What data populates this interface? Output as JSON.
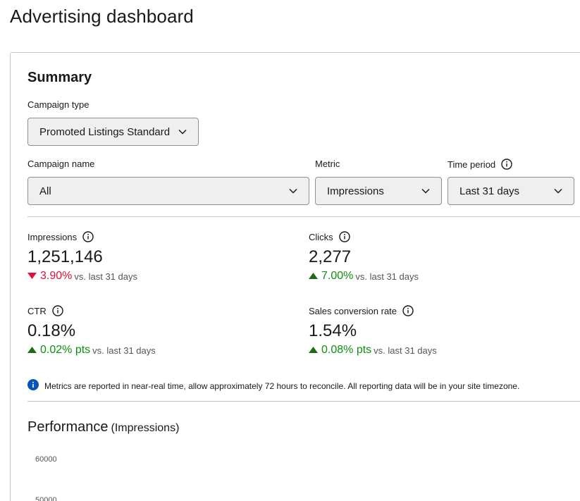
{
  "page": {
    "title": "Advertising dashboard"
  },
  "summary": {
    "title": "Summary",
    "campaign_type": {
      "label": "Campaign type",
      "value": "Promoted Listings Standard"
    },
    "campaign_name": {
      "label": "Campaign name",
      "value": "All"
    },
    "metric": {
      "label": "Metric",
      "value": "Impressions"
    },
    "time_period": {
      "label": "Time period",
      "value": "Last 31 days"
    }
  },
  "metrics": [
    {
      "label": "Impressions",
      "value": "1,251,146",
      "direction": "down",
      "change": "3.90%",
      "vs": "vs. last 31 days"
    },
    {
      "label": "Clicks",
      "value": "2,277",
      "direction": "up",
      "change": "7.00%",
      "vs": "vs. last 31 days"
    },
    {
      "label": "CTR",
      "value": "0.18%",
      "direction": "up",
      "change": "0.02% pts",
      "vs": "vs. last 31 days"
    },
    {
      "label": "Sales conversion rate",
      "value": "1.54%",
      "direction": "up",
      "change": "0.08% pts",
      "vs": "vs. last 31 days"
    }
  ],
  "notice": "Metrics are reported in near-real time, allow approximately 72 hours to reconcile. All reporting data will be in your site timezone.",
  "performance": {
    "title": "Performance",
    "subtitle": "(Impressions)",
    "y_ticks": [
      "60000",
      "50000"
    ]
  },
  "colors": {
    "down": "#e0103a",
    "up": "#0d8f10",
    "info": "#0654ba"
  }
}
